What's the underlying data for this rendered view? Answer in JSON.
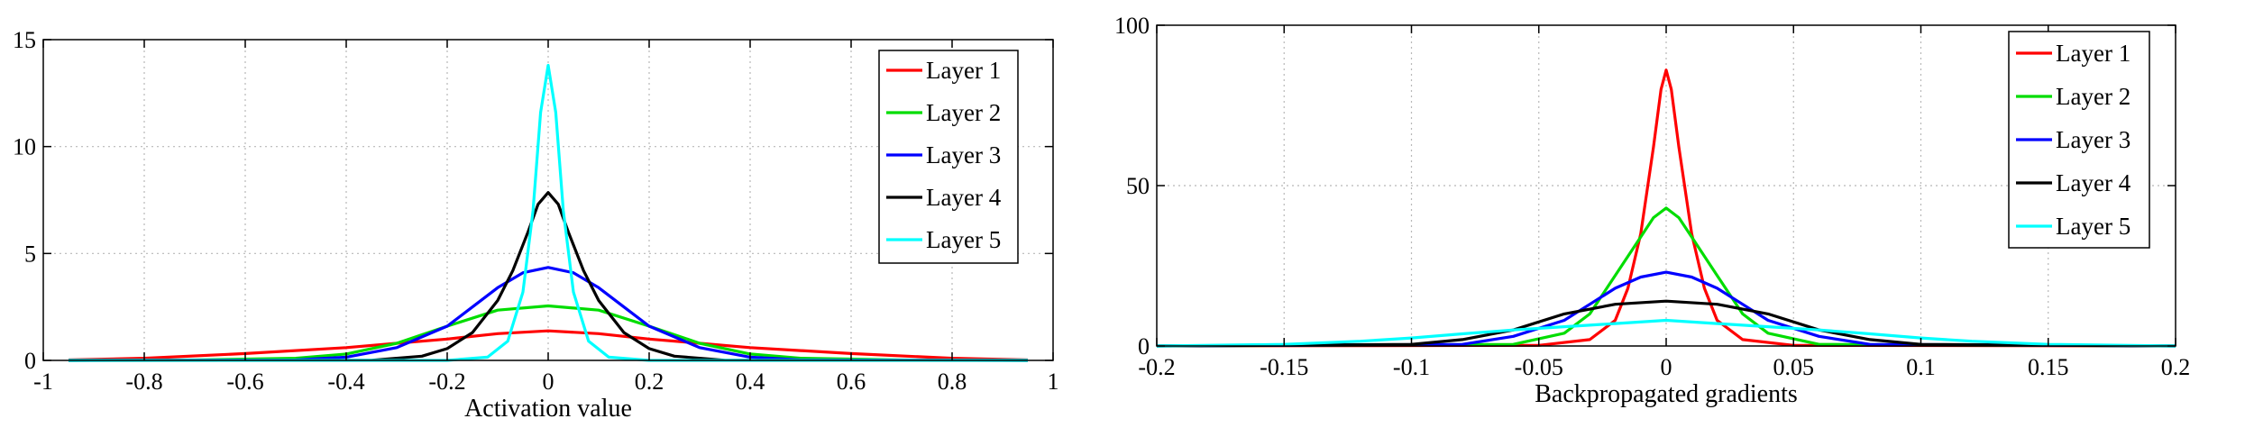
{
  "chart_data": [
    {
      "type": "line",
      "xlabel": "Activation value",
      "ylabel": "",
      "xlim": [
        -1,
        1
      ],
      "ylim": [
        0,
        15
      ],
      "xticks": [
        -1,
        -0.8,
        -0.6,
        -0.4,
        -0.2,
        0,
        0.2,
        0.4,
        0.6,
        0.8,
        1
      ],
      "xtick_labels": [
        "-1",
        "-0.8",
        "-0.6",
        "-0.4",
        "-0.2",
        "0",
        "0.2",
        "0.4",
        "0.6",
        "0.8",
        "1"
      ],
      "yticks": [
        0,
        5,
        10,
        15
      ],
      "ytick_labels": [
        "0",
        "5",
        "10",
        "15"
      ],
      "grid": true,
      "legend_position": "top-right",
      "series": [
        {
          "name": "Layer 1",
          "color": "#ff0000",
          "x": [
            -0.95,
            -0.8,
            -0.6,
            -0.4,
            -0.3,
            -0.2,
            -0.1,
            0,
            0.1,
            0.2,
            0.3,
            0.4,
            0.6,
            0.8,
            0.95
          ],
          "y": [
            0.02,
            0.1,
            0.32,
            0.6,
            0.8,
            1.0,
            1.25,
            1.38,
            1.25,
            1.0,
            0.8,
            0.6,
            0.32,
            0.1,
            0.02
          ]
        },
        {
          "name": "Layer 2",
          "color": "#00dd00",
          "x": [
            -0.95,
            -0.7,
            -0.5,
            -0.4,
            -0.3,
            -0.2,
            -0.1,
            0,
            0.1,
            0.2,
            0.3,
            0.4,
            0.5,
            0.7,
            0.95
          ],
          "y": [
            0,
            0.02,
            0.1,
            0.3,
            0.8,
            1.6,
            2.35,
            2.55,
            2.35,
            1.6,
            0.8,
            0.3,
            0.1,
            0.02,
            0
          ]
        },
        {
          "name": "Layer 3",
          "color": "#0000ff",
          "x": [
            -0.95,
            -0.5,
            -0.4,
            -0.3,
            -0.2,
            -0.15,
            -0.1,
            -0.05,
            0,
            0.05,
            0.1,
            0.15,
            0.2,
            0.3,
            0.4,
            0.5,
            0.95
          ],
          "y": [
            0,
            0.02,
            0.15,
            0.6,
            1.6,
            2.5,
            3.4,
            4.1,
            4.35,
            4.1,
            3.4,
            2.5,
            1.6,
            0.6,
            0.15,
            0.02,
            0
          ]
        },
        {
          "name": "Layer 4",
          "color": "#000000",
          "x": [
            -0.95,
            -0.35,
            -0.25,
            -0.2,
            -0.15,
            -0.1,
            -0.07,
            -0.04,
            -0.02,
            0,
            0.02,
            0.04,
            0.07,
            0.1,
            0.15,
            0.2,
            0.25,
            0.35,
            0.95
          ],
          "y": [
            0,
            0.01,
            0.2,
            0.55,
            1.3,
            2.8,
            4.2,
            6.0,
            7.3,
            7.85,
            7.3,
            6.0,
            4.2,
            2.8,
            1.3,
            0.55,
            0.2,
            0.01,
            0
          ]
        },
        {
          "name": "Layer 5",
          "color": "#00ffff",
          "x": [
            -0.95,
            -0.2,
            -0.12,
            -0.08,
            -0.05,
            -0.03,
            -0.015,
            0,
            0.015,
            0.03,
            0.05,
            0.08,
            0.12,
            0.2,
            0.95
          ],
          "y": [
            0,
            0,
            0.15,
            0.9,
            3.2,
            7.0,
            11.6,
            13.8,
            11.6,
            7.0,
            3.2,
            0.9,
            0.15,
            0,
            0
          ]
        }
      ]
    },
    {
      "type": "line",
      "xlabel": "Backpropagated gradients",
      "ylabel": "",
      "xlim": [
        -0.2,
        0.2
      ],
      "ylim": [
        0,
        100
      ],
      "xticks": [
        -0.2,
        -0.15,
        -0.1,
        -0.05,
        0,
        0.05,
        0.1,
        0.15,
        0.2
      ],
      "xtick_labels": [
        "-0.2",
        "-0.15",
        "-0.1",
        "-0.05",
        "0",
        "0.05",
        "0.1",
        "0.15",
        "0.2"
      ],
      "yticks": [
        0,
        50,
        100
      ],
      "ytick_labels": [
        "0",
        "50",
        "100"
      ],
      "grid": true,
      "legend_position": "top-right",
      "series": [
        {
          "name": "Layer 1",
          "color": "#ff0000",
          "x": [
            -0.2,
            -0.05,
            -0.03,
            -0.02,
            -0.015,
            -0.01,
            -0.005,
            -0.002,
            0,
            0.002,
            0.005,
            0.01,
            0.015,
            0.02,
            0.03,
            0.05,
            0.2
          ],
          "y": [
            0,
            0.2,
            2,
            8,
            18,
            35,
            62,
            80,
            86,
            80,
            62,
            35,
            18,
            8,
            2,
            0.2,
            0
          ]
        },
        {
          "name": "Layer 2",
          "color": "#00dd00",
          "x": [
            -0.2,
            -0.06,
            -0.04,
            -0.03,
            -0.02,
            -0.01,
            -0.005,
            0,
            0.005,
            0.01,
            0.02,
            0.03,
            0.04,
            0.06,
            0.2
          ],
          "y": [
            0,
            0.5,
            4,
            10,
            22,
            34,
            40,
            43,
            40,
            34,
            22,
            10,
            4,
            0.5,
            0
          ]
        },
        {
          "name": "Layer 3",
          "color": "#0000ff",
          "x": [
            -0.2,
            -0.08,
            -0.06,
            -0.04,
            -0.03,
            -0.02,
            -0.01,
            0,
            0.01,
            0.02,
            0.03,
            0.04,
            0.06,
            0.08,
            0.2
          ],
          "y": [
            0,
            0.5,
            3,
            8,
            13,
            18,
            21.5,
            23,
            21.5,
            18,
            13,
            8,
            3,
            0.5,
            0
          ]
        },
        {
          "name": "Layer 4",
          "color": "#000000",
          "x": [
            -0.2,
            -0.1,
            -0.08,
            -0.06,
            -0.04,
            -0.02,
            0,
            0.02,
            0.04,
            0.06,
            0.08,
            0.1,
            0.2
          ],
          "y": [
            0,
            0.5,
            2,
            5,
            10,
            13,
            14,
            13,
            10,
            5,
            2,
            0.5,
            0
          ]
        },
        {
          "name": "Layer 5",
          "color": "#00ffff",
          "x": [
            -0.2,
            -0.15,
            -0.12,
            -0.1,
            -0.08,
            -0.06,
            -0.04,
            -0.02,
            0,
            0.02,
            0.04,
            0.06,
            0.08,
            0.1,
            0.12,
            0.15,
            0.2
          ],
          "y": [
            0,
            0.5,
            1.5,
            2.5,
            3.8,
            5,
            6,
            7,
            8,
            7,
            6,
            5,
            3.8,
            2.5,
            1.5,
            0.5,
            0
          ]
        }
      ]
    }
  ]
}
